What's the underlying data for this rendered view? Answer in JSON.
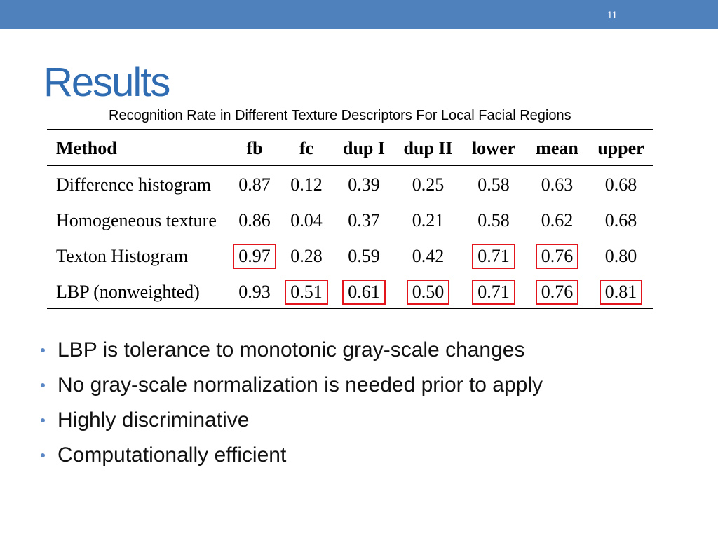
{
  "slide": {
    "page_number": "11",
    "title": "Results"
  },
  "colors": {
    "header_bar": "#4F81BD",
    "title": "#2F6CB2",
    "highlight_box": "#E3161E",
    "bullet": "#5B87C5",
    "text": "#111111"
  },
  "table": {
    "caption": "Recognition Rate in Different Texture Descriptors For Local Facial Regions",
    "headers": [
      "Method",
      "fb",
      "fc",
      "dup I",
      "dup II",
      "lower",
      "mean",
      "upper"
    ],
    "rows": [
      {
        "method": "Difference histogram",
        "values": [
          "0.87",
          "0.12",
          "0.39",
          "0.25",
          "0.58",
          "0.63",
          "0.68"
        ],
        "highlighted": [
          false,
          false,
          false,
          false,
          false,
          false,
          false
        ]
      },
      {
        "method": "Homogeneous texture",
        "values": [
          "0.86",
          "0.04",
          "0.37",
          "0.21",
          "0.58",
          "0.62",
          "0.68"
        ],
        "highlighted": [
          false,
          false,
          false,
          false,
          false,
          false,
          false
        ]
      },
      {
        "method": "Texton Histogram",
        "values": [
          "0.97",
          "0.28",
          "0.59",
          "0.42",
          "0.71",
          "0.76",
          "0.80"
        ],
        "highlighted": [
          true,
          false,
          false,
          false,
          true,
          true,
          false
        ]
      },
      {
        "method": "LBP (nonweighted)",
        "values": [
          "0.93",
          "0.51",
          "0.61",
          "0.50",
          "0.71",
          "0.76",
          "0.81"
        ],
        "highlighted": [
          false,
          true,
          true,
          true,
          true,
          true,
          true
        ]
      }
    ]
  },
  "bullets": [
    "LBP is tolerance to monotonic gray-scale changes",
    "No gray-scale normalization is needed prior to apply",
    "Highly discriminative",
    "Computationally efficient"
  ]
}
